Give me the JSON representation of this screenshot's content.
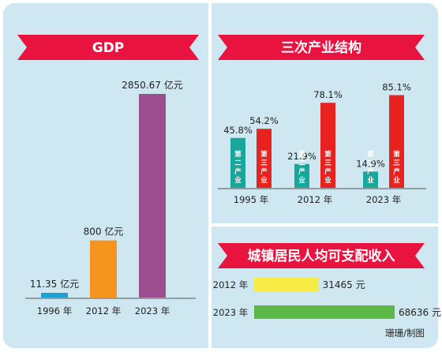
{
  "colors": {
    "banner": "#e8133f",
    "background": "#cfe7f0",
    "gdp_1996": "#1ba1d5",
    "gdp_2012": "#f7941d",
    "gdp_2023": "#9b4f8e",
    "secondary": "#18a79a",
    "tertiary": "#e8231f",
    "income_2012": "#f6ec45",
    "income_2023": "#5cb847"
  },
  "gdp": {
    "title": "GDP",
    "bar_labels": [
      "11.35 亿元",
      "800 亿元",
      "2850.67 亿元"
    ],
    "tick_labels": [
      "1996 年",
      "2012 年",
      "2023 年"
    ]
  },
  "structure": {
    "title": "三次产业结构",
    "secondary_name": "第二产业",
    "tertiary_name": "第三产业",
    "years": [
      "1995 年",
      "2012 年",
      "2023 年"
    ],
    "secondary_labels": [
      "45.8%",
      "21.9%",
      "14.9%"
    ],
    "tertiary_labels": [
      "54.2%",
      "78.1%",
      "85.1%"
    ]
  },
  "income": {
    "title": "城镇居民人均可支配收入",
    "year_labels": [
      "2012 年",
      "2023 年"
    ],
    "value_labels": [
      "31465 元",
      "68636 元"
    ]
  },
  "credit": "珊珊/制图",
  "chart_data": [
    {
      "type": "bar",
      "title": "GDP",
      "categories": [
        "1996 年",
        "2012 年",
        "2023 年"
      ],
      "values": [
        11.35,
        800,
        2850.67
      ],
      "unit": "亿元"
    },
    {
      "type": "bar",
      "title": "三次产业结构",
      "categories": [
        "1995 年",
        "2012 年",
        "2023 年"
      ],
      "series": [
        {
          "name": "第二产业",
          "values": [
            45.8,
            21.9,
            14.9
          ]
        },
        {
          "name": "第三产业",
          "values": [
            54.2,
            78.1,
            85.1
          ]
        }
      ],
      "unit": "%"
    },
    {
      "type": "bar",
      "orientation": "horizontal",
      "title": "城镇居民人均可支配收入",
      "categories": [
        "2012 年",
        "2023 年"
      ],
      "values": [
        31465,
        68636
      ],
      "unit": "元"
    }
  ]
}
